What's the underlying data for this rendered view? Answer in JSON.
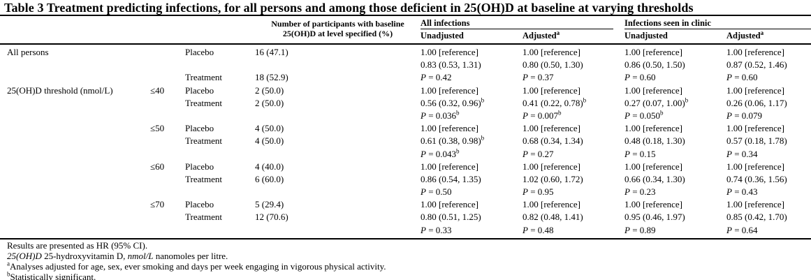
{
  "colors": {
    "text": "#000000",
    "background": "#ffffff",
    "rule": "#000000"
  },
  "table": {
    "title": "Table 3 Treatment predicting infections, for all persons and among those deficient in 25(OH)D at baseline at varying thresholds",
    "header": {
      "participants_line1": "Number of participants with baseline",
      "participants_line2": "25(OH)D at level specified (%)",
      "groups": [
        {
          "label": "All infections",
          "subs": [
            "Unadjusted",
            "Adjusted^a"
          ]
        },
        {
          "label": "Infections seen in clinic",
          "subs": [
            "Unadjusted",
            "Adjusted^a"
          ]
        }
      ]
    },
    "rows": [
      {
        "label": "All persons",
        "threshold": "",
        "arm": "Placebo",
        "n": "16 (47.1)",
        "cells": [
          "1.00 [reference]",
          "1.00 [reference]",
          "1.00 [reference]",
          "1.00 [reference]"
        ]
      },
      {
        "label": "",
        "threshold": "",
        "arm": "",
        "n": "",
        "cells": [
          "0.83 (0.53, 1.31)",
          "0.80 (0.50, 1.30)",
          "0.86 (0.50, 1.50)",
          "0.87 (0.52, 1.46)"
        ]
      },
      {
        "label": "",
        "threshold": "",
        "arm": "Treatment",
        "n": "18 (52.9)",
        "cells": [
          "*P* = 0.42",
          "*P* = 0.37",
          "*P* = 0.60",
          "*P* = 0.60"
        ]
      },
      {
        "label": "25(OH)D threshold (nmol/L)",
        "threshold": "≤40",
        "arm": "Placebo",
        "n": "2 (50.0)",
        "cells": [
          "1.00 [reference]",
          "1.00 [reference]",
          "1.00 [reference]",
          "1.00 [reference]"
        ]
      },
      {
        "label": "",
        "threshold": "",
        "arm": "Treatment",
        "n": "2 (50.0)",
        "cells": [
          "0.56 (0.32, 0.96)^b",
          "0.41 (0.22, 0.78)^b",
          "0.27 (0.07, 1.00)^b",
          "0.26 (0.06, 1.17)"
        ]
      },
      {
        "label": "",
        "threshold": "",
        "arm": "",
        "n": "",
        "cells": [
          "*P* = 0.036^b",
          "*P* = 0.007^b",
          "*P* = 0.050^b",
          "*P* = 0.079"
        ]
      },
      {
        "label": "",
        "threshold": "≤50",
        "arm": "Placebo",
        "n": "4 (50.0)",
        "cells": [
          "1.00 [reference]",
          "1.00 [reference]",
          "1.00 [reference]",
          "1.00 [reference]"
        ]
      },
      {
        "label": "",
        "threshold": "",
        "arm": "Treatment",
        "n": "4 (50.0)",
        "cells": [
          "0.61 (0.38, 0.98)^b",
          "0.68 (0.34, 1.34)",
          "0.48 (0.18, 1.30)",
          "0.57 (0.18, 1.78)"
        ]
      },
      {
        "label": "",
        "threshold": "",
        "arm": "",
        "n": "",
        "cells": [
          "*P* = 0.043^b",
          "*P* = 0.27",
          "*P* = 0.15",
          "*P* = 0.34"
        ]
      },
      {
        "label": "",
        "threshold": "≤60",
        "arm": "Placebo",
        "n": "4 (40.0)",
        "cells": [
          "1.00 [reference]",
          "1.00 [reference]",
          "1.00 [reference]",
          "1.00 [reference]"
        ]
      },
      {
        "label": "",
        "threshold": "",
        "arm": "Treatment",
        "n": "6 (60.0)",
        "cells": [
          "0.86 (0.54, 1.35)",
          "1.02 (0.60, 1.72)",
          "0.66 (0.34, 1.30)",
          "0.74 (0.36, 1.56)"
        ]
      },
      {
        "label": "",
        "threshold": "",
        "arm": "",
        "n": "",
        "cells": [
          "*P* = 0.50",
          "*P* = 0.95",
          "*P* = 0.23",
          "*P* = 0.43"
        ]
      },
      {
        "label": "",
        "threshold": "≤70",
        "arm": "Placebo",
        "n": "5 (29.4)",
        "cells": [
          "1.00 [reference]",
          "1.00 [reference]",
          "1.00 [reference]",
          "1.00 [reference]"
        ]
      },
      {
        "label": "",
        "threshold": "",
        "arm": "Treatment",
        "n": "12 (70.6)",
        "cells": [
          "0.80 (0.51, 1.25)",
          "0.82 (0.48, 1.41)",
          "0.95 (0.46, 1.97)",
          "0.85 (0.42, 1.70)"
        ]
      },
      {
        "label": "",
        "threshold": "",
        "arm": "",
        "n": "",
        "cells": [
          "*P* = 0.33",
          "*P* = 0.48",
          "*P* = 0.89",
          "*P* = 0.64"
        ]
      }
    ],
    "footnotes": [
      "Results are presented as HR (95% CI).",
      "*25(OH)D* 25-hydroxyvitamin D, *nmol/L* nanomoles per litre.",
      "^aAnalyses adjusted for age, sex, ever smoking and days per week engaging in vigorous physical activity.",
      "^bStatistically significant."
    ]
  }
}
